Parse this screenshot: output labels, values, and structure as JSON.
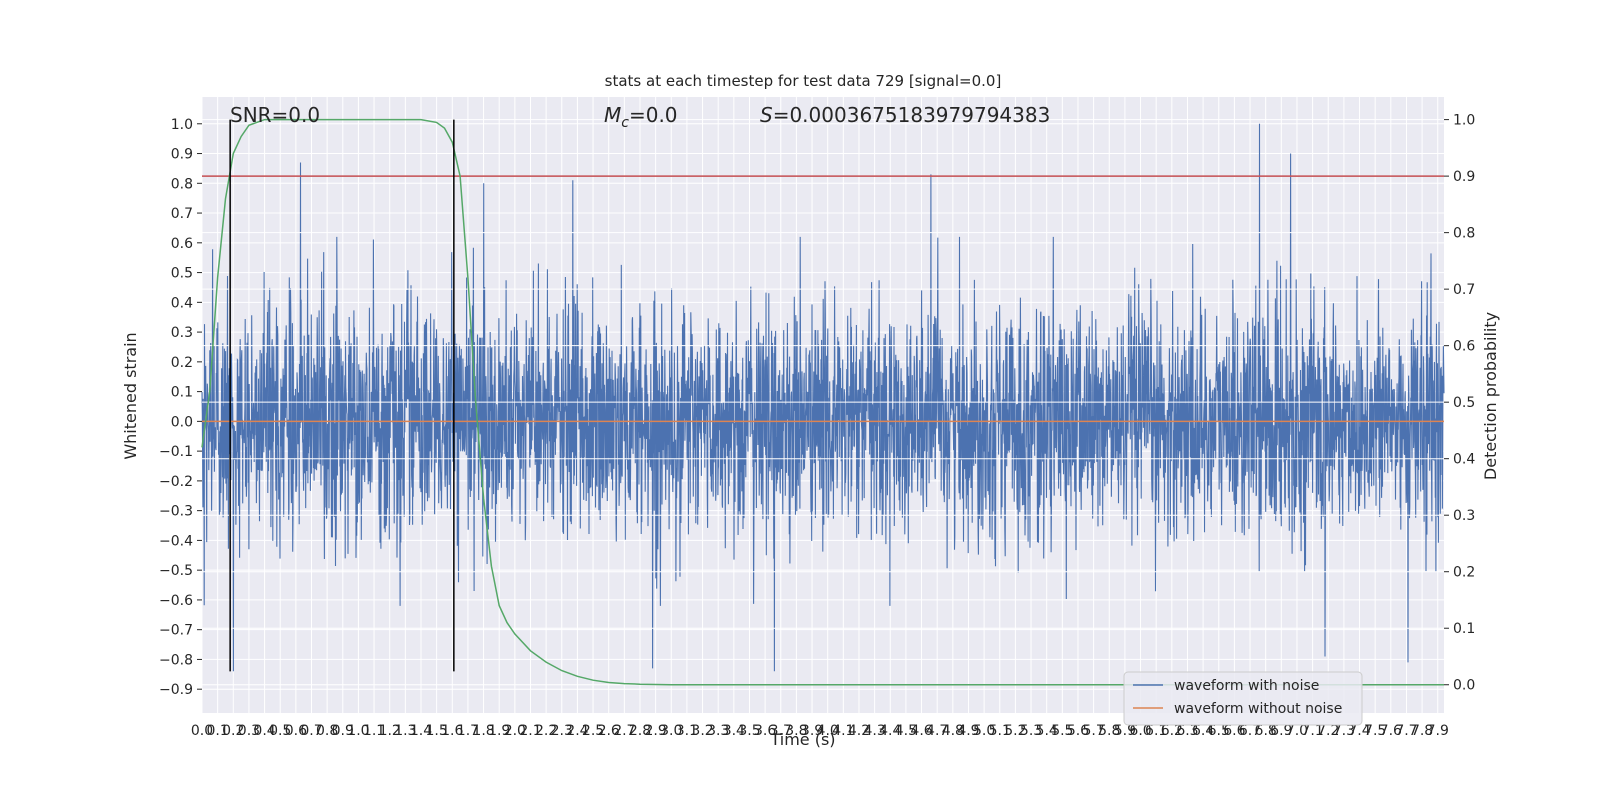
{
  "chart_data": {
    "type": "line",
    "title": "stats at each timestep for test data 729 [signal=0.0]",
    "xlabel": "Time (s)",
    "ylabel_left": "Whitened strain",
    "ylabel_right": "Detection probability",
    "xlim": [
      0.0,
      7.94
    ],
    "ylim_left": [
      -0.98,
      1.09
    ],
    "ylim_right": [
      -0.05,
      1.04
    ],
    "x_ticks": [
      0.0,
      0.1,
      0.2,
      0.3,
      0.4,
      0.5,
      0.6,
      0.7,
      0.8,
      0.9,
      1.0,
      1.1,
      1.2,
      1.3,
      1.4,
      1.5,
      1.6,
      1.7,
      1.8,
      1.9,
      2.0,
      2.1,
      2.2,
      2.3,
      2.4,
      2.5,
      2.6,
      2.7,
      2.8,
      2.9,
      3.0,
      3.1,
      3.2,
      3.3,
      3.4,
      3.5,
      3.6,
      3.7,
      3.8,
      3.9,
      4.0,
      4.1,
      4.2,
      4.3,
      4.4,
      4.5,
      4.6,
      4.7,
      4.8,
      4.9,
      5.0,
      5.1,
      5.2,
      5.3,
      5.4,
      5.5,
      5.6,
      5.7,
      5.8,
      5.9,
      6.0,
      6.1,
      6.2,
      6.3,
      6.4,
      6.5,
      6.6,
      6.7,
      6.8,
      6.9,
      7.0,
      7.1,
      7.2,
      7.3,
      7.4,
      7.5,
      7.6,
      7.7,
      7.8,
      7.9
    ],
    "y_ticks_left": [
      -0.9,
      -0.8,
      -0.7,
      -0.6,
      -0.5,
      -0.4,
      -0.3,
      -0.2,
      -0.1,
      0.0,
      0.1,
      0.2,
      0.3,
      0.4,
      0.5,
      0.6,
      0.7,
      0.8,
      0.9,
      1.0
    ],
    "y_ticks_right": [
      0.0,
      0.1,
      0.2,
      0.3,
      0.4,
      0.5,
      0.6,
      0.7,
      0.8,
      0.9,
      1.0
    ],
    "grid": true,
    "legend_position": "lower right",
    "annotations": {
      "snr": "SNR=0.0",
      "mc": "=0.0",
      "mc_symbol": "M",
      "mc_sub": "c",
      "s": "=0.0003675183979794383",
      "s_symbol": "S"
    },
    "threshold_right": 0.9,
    "vlines_x": [
      0.18,
      1.61
    ],
    "series": [
      {
        "name": "waveform with noise",
        "axis": "left",
        "color": "#4c72b0",
        "style": "dense noise",
        "approx_range": [
          -0.84,
          1.0
        ],
        "notable_peaks": [
          [
            0.63,
            0.87
          ],
          [
            6.76,
            1.0
          ],
          [
            6.96,
            0.9
          ],
          [
            4.66,
            0.83
          ],
          [
            2.37,
            0.81
          ],
          [
            1.8,
            0.8
          ]
        ],
        "notable_troughs": [
          [
            0.2,
            -0.84
          ],
          [
            2.88,
            -0.83
          ],
          [
            3.66,
            -0.84
          ],
          [
            7.18,
            -0.79
          ],
          [
            7.71,
            -0.81
          ]
        ]
      },
      {
        "name": "waveform without noise",
        "axis": "left",
        "color": "#dd8452",
        "x": [
          0.0,
          7.94
        ],
        "y": [
          0.0,
          0.0
        ]
      },
      {
        "name": "Detection probability",
        "axis": "right",
        "color": "#55a868",
        "x": [
          0.0,
          0.05,
          0.1,
          0.15,
          0.2,
          0.25,
          0.3,
          0.35,
          0.4,
          0.5,
          0.6,
          0.8,
          1.0,
          1.2,
          1.4,
          1.5,
          1.55,
          1.6,
          1.65,
          1.7,
          1.75,
          1.8,
          1.85,
          1.9,
          1.95,
          2.0,
          2.1,
          2.2,
          2.3,
          2.4,
          2.5,
          2.6,
          2.7,
          2.8,
          3.0,
          3.5,
          4.0,
          5.0,
          6.0,
          7.0,
          7.94
        ],
        "y": [
          0.42,
          0.52,
          0.72,
          0.86,
          0.94,
          0.97,
          0.99,
          0.995,
          1.0,
          1.0,
          1.0,
          1.0,
          1.0,
          1.0,
          1.0,
          0.995,
          0.985,
          0.96,
          0.9,
          0.72,
          0.5,
          0.33,
          0.21,
          0.14,
          0.11,
          0.09,
          0.06,
          0.04,
          0.025,
          0.015,
          0.008,
          0.004,
          0.002,
          0.001,
          0.0,
          0.0,
          0.0,
          0.0,
          0.0,
          0.0,
          0.0
        ]
      }
    ]
  },
  "colors": {
    "plot_bg": "#eaeaf2",
    "grid": "#ffffff",
    "threshold": "#c44e52",
    "vline": "#000000"
  }
}
